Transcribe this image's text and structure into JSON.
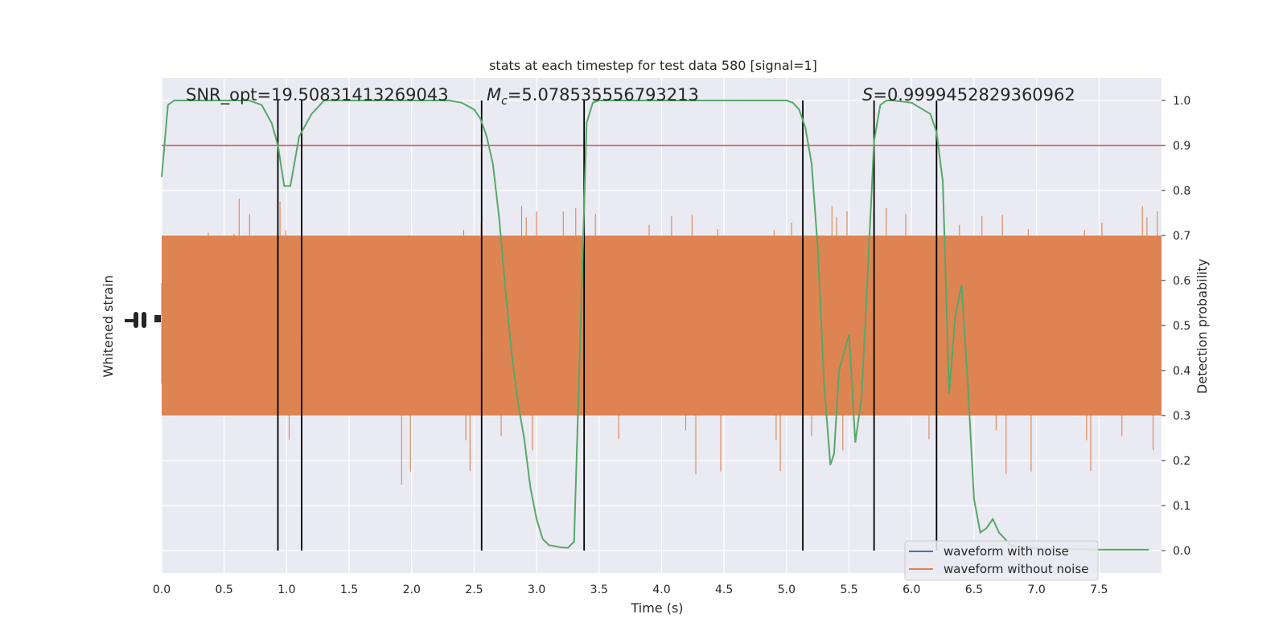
{
  "chart_data": {
    "type": "line",
    "title": "stats at each timestep for test data 580 [signal=1]",
    "xlabel": "Time (s)",
    "ylabel_left": "Whitened strain",
    "ylabel_right": "Detection probability",
    "xlim": [
      0.0,
      8.0
    ],
    "ylim_right": [
      -0.05,
      1.05
    ],
    "x_ticks": [
      "0.0",
      "0.5",
      "1.0",
      "1.5",
      "2.0",
      "2.5",
      "3.0",
      "3.5",
      "4.0",
      "4.5",
      "5.0",
      "5.5",
      "6.0",
      "6.5",
      "7.0",
      "7.5"
    ],
    "y_ticks_right": [
      "0.0",
      "0.1",
      "0.2",
      "0.3",
      "0.4",
      "0.5",
      "0.6",
      "0.7",
      "0.8",
      "0.9",
      "1.0"
    ],
    "annotations": {
      "snr": "SNR_opt=19.50831413269043",
      "mc_symbol": "M",
      "mc_sub": "c",
      "mc_value": "=5.078535556793213",
      "s_symbol": "S",
      "s_value": "=0.9999452829360962"
    },
    "threshold": 0.9,
    "vertical_lines": [
      0.93,
      1.12,
      2.56,
      3.38,
      5.13,
      5.7,
      6.2
    ],
    "series": [
      {
        "name": "waveform with noise",
        "color": "#4c72b0"
      },
      {
        "name": "waveform without noise",
        "color": "#dd8452"
      },
      {
        "color": "#55a868",
        "x": [
          0.0,
          0.05,
          0.1,
          0.2,
          0.3,
          0.5,
          0.7,
          0.8,
          0.88,
          0.93,
          0.98,
          1.03,
          1.1,
          1.2,
          1.3,
          1.4,
          1.6,
          2.0,
          2.3,
          2.4,
          2.5,
          2.55,
          2.6,
          2.65,
          2.7,
          2.75,
          2.8,
          2.85,
          2.9,
          2.95,
          3.0,
          3.05,
          3.1,
          3.2,
          3.25,
          3.3,
          3.35,
          3.4,
          3.45,
          3.5,
          3.6,
          4.0,
          4.5,
          5.0,
          5.05,
          5.1,
          5.15,
          5.2,
          5.25,
          5.3,
          5.35,
          5.38,
          5.42,
          5.5,
          5.55,
          5.6,
          5.65,
          5.7,
          5.75,
          5.8,
          5.85,
          6.0,
          6.15,
          6.2,
          6.25,
          6.3,
          6.35,
          6.4,
          6.45,
          6.5,
          6.55,
          6.6,
          6.65,
          6.7,
          6.8,
          7.0,
          7.5,
          7.9
        ],
        "y": [
          0.83,
          0.99,
          1.0,
          1.0,
          1.0,
          1.0,
          1.0,
          0.99,
          0.95,
          0.9,
          0.81,
          0.81,
          0.92,
          0.97,
          1.0,
          1.0,
          1.0,
          1.0,
          1.0,
          0.995,
          0.98,
          0.96,
          0.92,
          0.86,
          0.74,
          0.58,
          0.44,
          0.33,
          0.25,
          0.14,
          0.07,
          0.025,
          0.012,
          0.007,
          0.006,
          0.02,
          0.48,
          0.95,
          0.995,
          1.0,
          1.0,
          1.0,
          1.0,
          1.0,
          0.995,
          0.98,
          0.94,
          0.86,
          0.67,
          0.37,
          0.19,
          0.215,
          0.4,
          0.48,
          0.24,
          0.34,
          0.62,
          0.91,
          0.99,
          1.0,
          1.0,
          0.995,
          0.97,
          0.93,
          0.82,
          0.35,
          0.52,
          0.59,
          0.37,
          0.115,
          0.04,
          0.05,
          0.07,
          0.04,
          0.01,
          0.005,
          0.002,
          0.002
        ]
      }
    ],
    "legend_position": "lower-right",
    "grid": true,
    "style": {
      "background": "#eaeaf2",
      "grid": "#ffffff",
      "threshold_color": "#c44e52",
      "vline_color": "#000000"
    }
  }
}
